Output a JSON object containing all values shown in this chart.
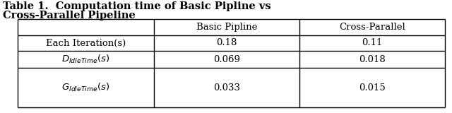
{
  "title_line1": "Table 1.  Computation time of Basic Pipline vs",
  "title_line2": "Cross-Parallel Pipeline",
  "col_headers": [
    "",
    "Basic Pipline",
    "Cross-Parallel"
  ],
  "row_labels": [
    "Each Iteration(s)",
    "$D_{IdleTime}(s)$",
    "$G_{IdleTime}(s)$"
  ],
  "values": [
    [
      "0.18",
      "0.11"
    ],
    [
      "0.069",
      "0.018"
    ],
    [
      "0.033",
      "0.015"
    ]
  ],
  "background_color": "#ffffff",
  "text_color": "#000000",
  "title_fontsize": 10.5,
  "table_fontsize": 9.5
}
